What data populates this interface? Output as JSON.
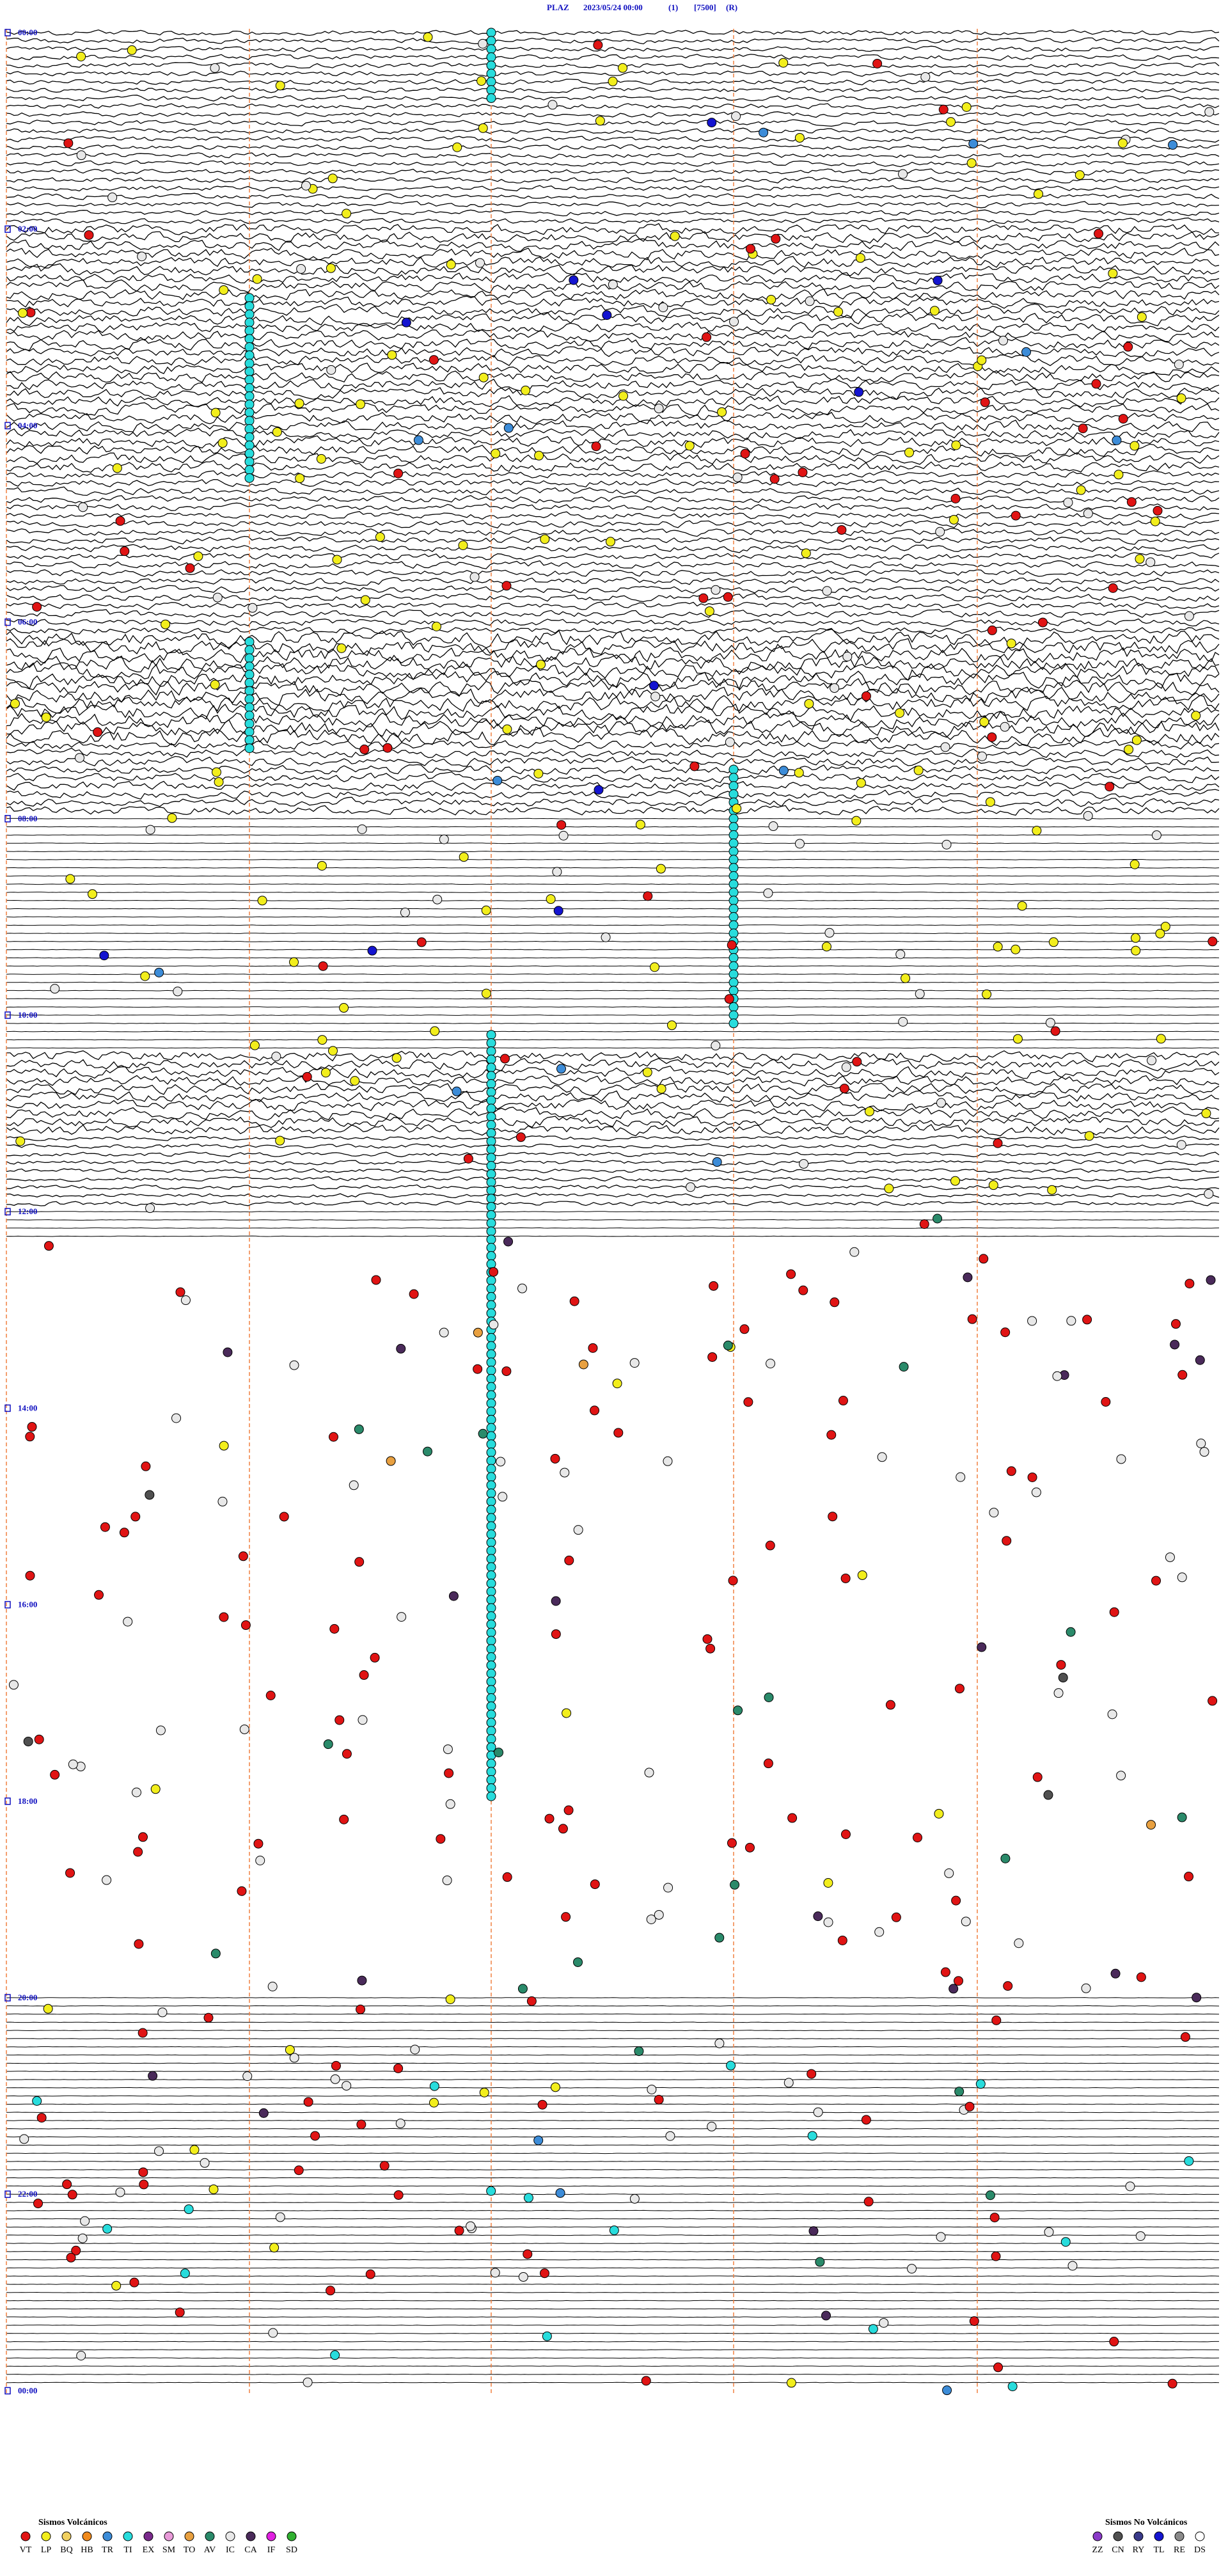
{
  "header": {
    "station": "PLAZ",
    "datetime": "2023/05/24 00:00",
    "channel": "(1)",
    "scale": "[7500]",
    "mode": "(R)"
  },
  "hour_labels": [
    "00:00",
    "02:00",
    "04:00",
    "06:00",
    "08:00",
    "10:00",
    "12:00",
    "14:00",
    "16:00",
    "18:00",
    "20:00",
    "22:00",
    "00:00"
  ],
  "legend": {
    "volcanic": {
      "title": "Sismos Volcánicos",
      "items": [
        {
          "code": "VT",
          "color": "#e01414"
        },
        {
          "code": "LP",
          "color": "#f2ee1c"
        },
        {
          "code": "BQ",
          "color": "#f0d060"
        },
        {
          "code": "HB",
          "color": "#f08a1c"
        },
        {
          "code": "TR",
          "color": "#3c8cd8"
        },
        {
          "code": "TI",
          "color": "#28dcdc"
        },
        {
          "code": "EX",
          "color": "#7a2a8c"
        },
        {
          "code": "SM",
          "color": "#e89ad8"
        },
        {
          "code": "TO",
          "color": "#e8a040"
        },
        {
          "code": "AV",
          "color": "#2a8a6a"
        },
        {
          "code": "IC",
          "color": "#e8e8e8"
        },
        {
          "code": "CA",
          "color": "#4a2a5a"
        },
        {
          "code": "IF",
          "color": "#e020e0"
        },
        {
          "code": "SD",
          "color": "#30b030"
        }
      ]
    },
    "non_volcanic": {
      "title": "Sismos No Volcánicos",
      "items": [
        {
          "code": "ZZ",
          "color": "#8a3ac8"
        },
        {
          "code": "CN",
          "color": "#505050"
        },
        {
          "code": "RY",
          "color": "#3a3a8a"
        },
        {
          "code": "TL",
          "color": "#1414d0"
        },
        {
          "code": "RE",
          "color": "#8a8a8a"
        },
        {
          "code": "DS",
          "color": "#ffffff"
        }
      ]
    }
  }
}
